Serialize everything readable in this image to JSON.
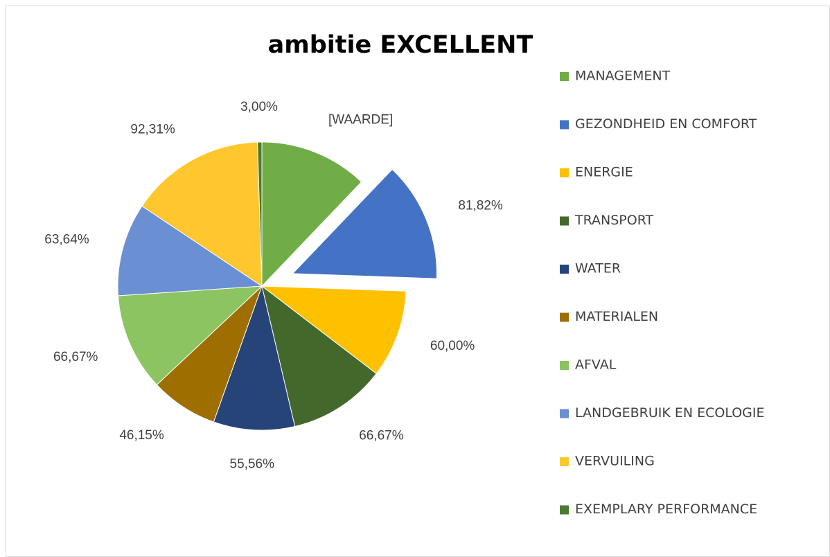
{
  "chart_data": {
    "type": "pie",
    "title": "ambitie EXCELLENT",
    "categories": [
      "MANAGEMENT",
      "GEZONDHEID EN COMFORT",
      "ENERGIE",
      "TRANSPORT",
      "WATER",
      "MATERIALEN",
      "AFVAL",
      "LANDGEBRUIK EN ECOLOGIE",
      "VERVUILING",
      "EXEMPLARY PERFORMANCE"
    ],
    "values": [
      74,
      81.82,
      60,
      66.67,
      55.56,
      46.15,
      66.67,
      63.64,
      92.31,
      3
    ],
    "value_labels": [
      "[WAARDE]",
      "81,82%",
      "60,00%",
      "66,67%",
      "55,56%",
      "46,15%",
      "66,67%",
      "63,64%",
      "92,31%",
      "3,00%"
    ],
    "colors": [
      "#70ad47",
      "#4472c4",
      "#ffc000",
      "#43682b",
      "#264478",
      "#9e6f00",
      "#8cc461",
      "#6a8fd3",
      "#ffc72e",
      "#4d7a30"
    ],
    "explode": 1,
    "legend": "right"
  }
}
